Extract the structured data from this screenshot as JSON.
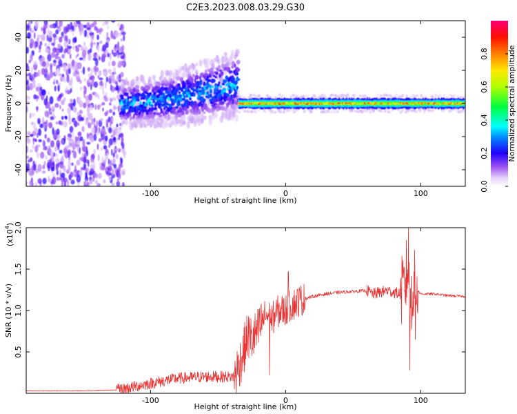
{
  "figure": {
    "title": "C2E3.2023.008.03.29.G30"
  },
  "chart_data": [
    {
      "type": "heatmap",
      "title": "C2E3.2023.008.03.29.G30",
      "xlabel": "Height of straight line (km)",
      "ylabel": "Frequency (Hz)",
      "xlim": [
        -192,
        133
      ],
      "ylim": [
        -50,
        50
      ],
      "x_ticks": [
        -100,
        0,
        100
      ],
      "y_ticks": [
        -40,
        -20,
        0,
        20,
        40
      ],
      "x_tick_labels": [
        "-100",
        "0",
        "100"
      ],
      "y_tick_labels": [
        "-40",
        "-20",
        "0",
        "20",
        "40"
      ],
      "grid": false,
      "colorbar": {
        "label": "Normalized spectral amplitude",
        "range": [
          0,
          1
        ],
        "ticks": [
          0.0,
          0.2,
          0.4,
          0.6,
          0.8
        ],
        "tick_labels": [
          "0.0",
          "0.2",
          "0.4",
          "0.6",
          "0.8"
        ],
        "colormap": "rainbow (white-purple-blue-cyan-green-yellow-orange-red-magenta)"
      },
      "regions": [
        {
          "x_range": [
            -192,
            -122
          ],
          "freq_range": [
            -50,
            50
          ],
          "amplitude_range": [
            0.05,
            0.2
          ],
          "description_type": "scattered noise"
        },
        {
          "x_range": [
            -122,
            -35
          ],
          "freq_center": [
            0,
            12
          ],
          "freq_halfwidth": [
            9,
            14
          ],
          "amplitude_range": [
            0.1,
            0.4
          ]
        },
        {
          "x_range": [
            -35,
            133
          ],
          "freq_center": 0,
          "freq_halfwidth": 3,
          "amplitude_range": [
            0.5,
            0.95
          ]
        }
      ],
      "colors": {
        "0.0": "#ffffff",
        "0.05": "#e8d8fa",
        "0.1": "#c79bf5",
        "0.15": "#8a3df0",
        "0.2": "#1f00ff",
        "0.3": "#0070ff",
        "0.35": "#00ffff",
        "0.45": "#00ff40",
        "0.6": "#c8ff00",
        "0.7": "#ffe000",
        "0.8": "#ff8000",
        "0.9": "#ff0000",
        "1.0": "#ff0080"
      }
    },
    {
      "type": "line",
      "xlabel": "Height of straight line (km)",
      "ylabel": "SNR (10 * v/v)",
      "y_multiplier_label": "(x10",
      "y_multiplier_exponent": "4",
      "y_multiplier_close": ")",
      "xlim": [
        -192,
        133
      ],
      "ylim": [
        0,
        2.0
      ],
      "x_ticks": [
        -100,
        0,
        100
      ],
      "y_ticks": [
        0.5,
        1.0,
        1.5,
        2.0
      ],
      "x_tick_labels": [
        "-100",
        "0",
        "100"
      ],
      "y_tick_labels": [
        "0.5",
        "1.0",
        "1.5",
        "2.0"
      ],
      "grid": false,
      "series_color": "#e83535",
      "series": [
        {
          "name": "",
          "x": [
            -192,
            -150,
            -125,
            -118,
            -100,
            -80,
            -60,
            -45,
            -38,
            -32,
            -28,
            -25,
            -20,
            -15,
            -10,
            -5,
            0,
            3,
            10,
            20,
            30,
            40,
            50,
            60,
            65,
            75,
            85,
            88,
            90,
            92,
            95,
            100,
            110,
            120,
            133
          ],
          "y": [
            0.03,
            0.03,
            0.04,
            0.06,
            0.12,
            0.18,
            0.2,
            0.2,
            0.2,
            0.45,
            0.7,
            0.65,
            0.75,
            0.95,
            0.9,
            1.0,
            1.0,
            1.05,
            1.12,
            1.17,
            1.2,
            1.22,
            1.23,
            1.24,
            1.2,
            1.24,
            1.2,
            1.25,
            1.5,
            1.1,
            1.3,
            1.2,
            1.2,
            1.18,
            1.17
          ]
        }
      ],
      "noise_envelope": [
        {
          "x_range": [
            -192,
            -125
          ],
          "amp": 0.004
        },
        {
          "x_range": [
            -125,
            -38
          ],
          "amp": 0.07
        },
        {
          "x_range": [
            -38,
            -18
          ],
          "amp": 0.3
        },
        {
          "x_range": [
            -18,
            15
          ],
          "amp": 0.2
        },
        {
          "x_range": [
            15,
            60
          ],
          "amp": 0.02
        },
        {
          "x_range": [
            60,
            85
          ],
          "amp": 0.07
        },
        {
          "x_range": [
            85,
            98
          ],
          "amp": 0.45
        },
        {
          "x_range": [
            98,
            133
          ],
          "amp": 0.015
        }
      ],
      "spikes": [
        {
          "x": 2,
          "y": 1.47
        },
        {
          "x": -12,
          "y": 0.22
        },
        {
          "x": 91,
          "y": 2.0
        },
        {
          "x": 92,
          "y": 0.28
        },
        {
          "x": 96,
          "y": 0.65
        }
      ]
    }
  ]
}
